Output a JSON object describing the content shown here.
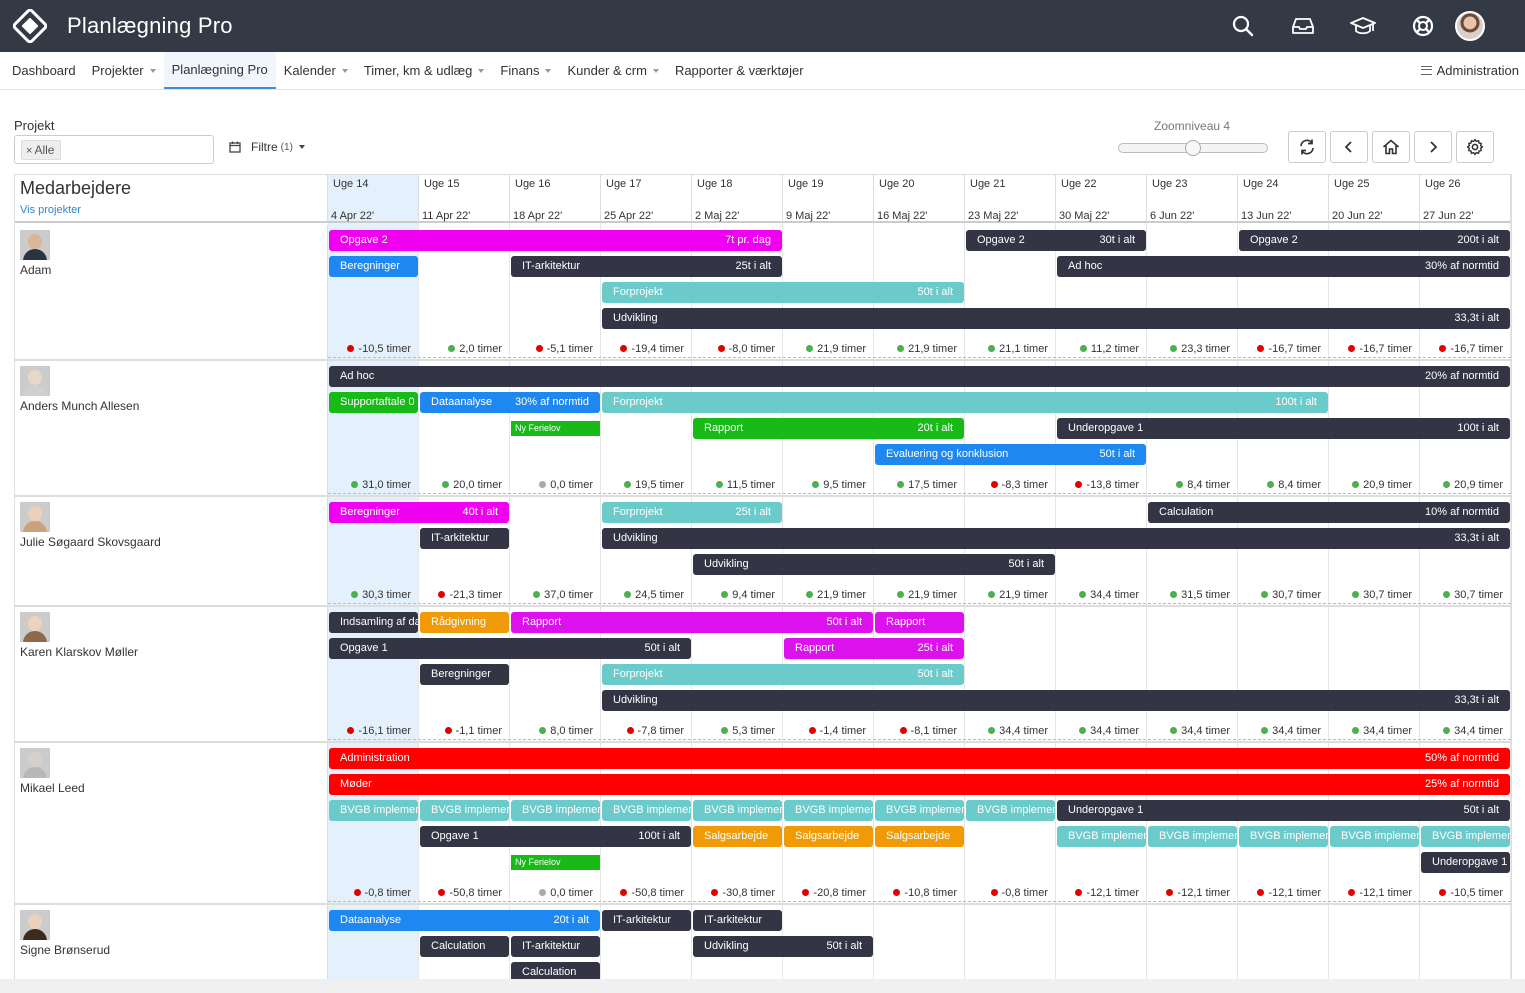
{
  "app": {
    "title": "Planlægning Pro"
  },
  "top_icons": [
    "search-icon",
    "inbox-icon",
    "graduation-cap-icon",
    "lifebuoy-icon"
  ],
  "nav": {
    "items": [
      {
        "label": "Dashboard",
        "caret": false
      },
      {
        "label": "Projekter",
        "caret": true
      },
      {
        "label": "Planlægning Pro",
        "caret": false,
        "active": true
      },
      {
        "label": "Kalender",
        "caret": true
      },
      {
        "label": "Timer, km & udlæg",
        "caret": true
      },
      {
        "label": "Finans",
        "caret": true
      },
      {
        "label": "Kunder & crm",
        "caret": true
      },
      {
        "label": "Rapporter & værktøjer",
        "caret": false
      }
    ],
    "admin_label": "Administration"
  },
  "controls": {
    "project_label": "Projekt",
    "project_tag": "Alle",
    "filter_label": "Filtre",
    "filter_count": "(1)",
    "zoom_label": "Zoomniveau 4",
    "zoom_level": 0.5
  },
  "grid": {
    "employees_heading": "Medarbejdere",
    "show_projects_link": "Vis projekter",
    "weeks": [
      {
        "week": "Uge 14",
        "date": "4 Apr 22'",
        "current": true
      },
      {
        "week": "Uge 15",
        "date": "11 Apr 22'"
      },
      {
        "week": "Uge 16",
        "date": "18 Apr 22'"
      },
      {
        "week": "Uge 17",
        "date": "25 Apr 22'"
      },
      {
        "week": "Uge 18",
        "date": "2 Maj 22'"
      },
      {
        "week": "Uge 19",
        "date": "9 Maj 22'"
      },
      {
        "week": "Uge 20",
        "date": "16 Maj 22'"
      },
      {
        "week": "Uge 21",
        "date": "23 Maj 22'"
      },
      {
        "week": "Uge 22",
        "date": "30 Maj 22'"
      },
      {
        "week": "Uge 23",
        "date": "6 Jun 22'"
      },
      {
        "week": "Uge 24",
        "date": "13 Jun 22'"
      },
      {
        "week": "Uge 25",
        "date": "20 Jun 22'"
      },
      {
        "week": "Uge 26",
        "date": "27 Jun 22'"
      }
    ]
  },
  "colors": {
    "dark": "#333545",
    "magenta": "#f000f0",
    "purple": "#dd10ee",
    "blue": "#1e88f0",
    "teal": "#6bcbcb",
    "green": "#18ba18",
    "orange": "#f09a08",
    "red": "#ff0000",
    "dot_red": "#e00000",
    "dot_green": "#4caf50",
    "dot_grey": "#aaaaaa"
  },
  "employees": [
    {
      "name": "Adam",
      "face": "#d9b59a",
      "body": "#2a3340",
      "bars": [
        {
          "label": "Opgave 2",
          "right": "7t pr. dag",
          "start": 0,
          "end": 5,
          "lane": 0,
          "color": "magenta"
        },
        {
          "label": "Opgave 2",
          "right": "30t i alt",
          "start": 7,
          "end": 9,
          "lane": 0,
          "color": "dark"
        },
        {
          "label": "Opgave 2",
          "right": "200t i alt",
          "start": 10,
          "end": 13,
          "lane": 0,
          "color": "dark"
        },
        {
          "label": "Beregninger",
          "right": "",
          "start": 0,
          "end": 1,
          "lane": 1,
          "color": "blue"
        },
        {
          "label": "IT-arkitektur",
          "right": "25t i alt",
          "start": 2,
          "end": 5,
          "lane": 1,
          "color": "dark"
        },
        {
          "label": "Ad hoc",
          "right": "30% af normtid",
          "start": 8,
          "end": 13,
          "lane": 1,
          "color": "dark"
        },
        {
          "label": "Forprojekt",
          "right": "50t i alt",
          "start": 3,
          "end": 7,
          "lane": 2,
          "color": "teal"
        },
        {
          "label": "Udvikling",
          "right": "33,3t i alt",
          "start": 3,
          "end": 13,
          "lane": 3,
          "color": "dark"
        }
      ],
      "hours": [
        {
          "t": "-10,5 timer",
          "s": "red"
        },
        {
          "t": "2,0 timer",
          "s": "green"
        },
        {
          "t": "-5,1 timer",
          "s": "red"
        },
        {
          "t": "-19,4 timer",
          "s": "red"
        },
        {
          "t": "-8,0 timer",
          "s": "red"
        },
        {
          "t": "21,9 timer",
          "s": "green"
        },
        {
          "t": "21,9 timer",
          "s": "green"
        },
        {
          "t": "21,1 timer",
          "s": "green"
        },
        {
          "t": "11,2 timer",
          "s": "green"
        },
        {
          "t": "23,3 timer",
          "s": "green"
        },
        {
          "t": "-16,7 timer",
          "s": "red"
        },
        {
          "t": "-16,7 timer",
          "s": "red"
        },
        {
          "t": "-16,7 timer",
          "s": "red"
        }
      ]
    },
    {
      "name": "Anders Munch Allesen",
      "face": "#e8d8c8",
      "body": "#d0d0d0",
      "bars": [
        {
          "label": "Ad hoc",
          "right": "20% af normtid",
          "start": 0,
          "end": 13,
          "lane": 0,
          "color": "dark"
        },
        {
          "label": "Supportaftale 0",
          "right": "",
          "start": 0,
          "end": 1,
          "lane": 1,
          "color": "green"
        },
        {
          "label": "Dataanalyse",
          "right": "30% af normtid",
          "start": 1,
          "end": 3,
          "lane": 1,
          "color": "blue"
        },
        {
          "label": "Forprojekt",
          "right": "100t i alt",
          "start": 3,
          "end": 11,
          "lane": 1,
          "color": "teal"
        },
        {
          "label": "Ny Ferielov",
          "right": "",
          "start": 2,
          "end": 3,
          "lane": 2,
          "color": "green",
          "small": true
        },
        {
          "label": "Rapport",
          "right": "20t i alt",
          "start": 4,
          "end": 7,
          "lane": 2,
          "color": "green"
        },
        {
          "label": "Underopgave 1",
          "right": "100t i alt",
          "start": 8,
          "end": 13,
          "lane": 2,
          "color": "dark"
        },
        {
          "label": "Evaluering og konklusion",
          "right": "50t i alt",
          "start": 6,
          "end": 9,
          "lane": 3,
          "color": "blue"
        }
      ],
      "hours": [
        {
          "t": "31,0 timer",
          "s": "green"
        },
        {
          "t": "20,0 timer",
          "s": "green"
        },
        {
          "t": "0,0 timer",
          "s": "grey"
        },
        {
          "t": "19,5 timer",
          "s": "green"
        },
        {
          "t": "11,5 timer",
          "s": "green"
        },
        {
          "t": "9,5 timer",
          "s": "green"
        },
        {
          "t": "17,5 timer",
          "s": "green"
        },
        {
          "t": "-8,3 timer",
          "s": "red"
        },
        {
          "t": "-13,8 timer",
          "s": "red"
        },
        {
          "t": "8,4 timer",
          "s": "green"
        },
        {
          "t": "8,4 timer",
          "s": "green"
        },
        {
          "t": "20,9 timer",
          "s": "green"
        },
        {
          "t": "20,9 timer",
          "s": "green"
        }
      ]
    },
    {
      "name": "Julie Søgaard Skovsgaard",
      "face": "#edd0b8",
      "body": "#c9a27a",
      "bars": [
        {
          "label": "Beregninger",
          "right": "40t i alt",
          "start": 0,
          "end": 2,
          "lane": 0,
          "color": "magenta"
        },
        {
          "label": "Forprojekt",
          "right": "25t i alt",
          "start": 3,
          "end": 5,
          "lane": 0,
          "color": "teal"
        },
        {
          "label": "Calculation",
          "right": "10% af normtid",
          "start": 9,
          "end": 13,
          "lane": 0,
          "color": "dark"
        },
        {
          "label": "IT-arkitektur",
          "right": "",
          "start": 1,
          "end": 2,
          "lane": 1,
          "color": "dark"
        },
        {
          "label": "Udvikling",
          "right": "33,3t i alt",
          "start": 3,
          "end": 13,
          "lane": 1,
          "color": "dark"
        },
        {
          "label": "Udvikling",
          "right": "50t i alt",
          "start": 4,
          "end": 8,
          "lane": 2,
          "color": "dark"
        }
      ],
      "hours": [
        {
          "t": "30,3 timer",
          "s": "green"
        },
        {
          "t": "-21,3 timer",
          "s": "red"
        },
        {
          "t": "37,0 timer",
          "s": "green"
        },
        {
          "t": "24,5 timer",
          "s": "green"
        },
        {
          "t": "9,4 timer",
          "s": "green"
        },
        {
          "t": "21,9 timer",
          "s": "green"
        },
        {
          "t": "21,9 timer",
          "s": "green"
        },
        {
          "t": "21,9 timer",
          "s": "green"
        },
        {
          "t": "34,4 timer",
          "s": "green"
        },
        {
          "t": "31,5 timer",
          "s": "green"
        },
        {
          "t": "30,7 timer",
          "s": "green"
        },
        {
          "t": "30,7 timer",
          "s": "green"
        },
        {
          "t": "30,7 timer",
          "s": "green"
        }
      ]
    },
    {
      "name": "Karen Klarskov Møller",
      "face": "#eed2bc",
      "body": "#8a6a4a",
      "bars": [
        {
          "label": "Indsamling af da",
          "right": "",
          "start": 0,
          "end": 1,
          "lane": 0,
          "color": "dark"
        },
        {
          "label": "Rådgivning",
          "right": "",
          "start": 1,
          "end": 2,
          "lane": 0,
          "color": "orange"
        },
        {
          "label": "Rapport",
          "right": "50t i alt",
          "start": 2,
          "end": 6,
          "lane": 0,
          "color": "purple"
        },
        {
          "label": "Rapport",
          "right": "",
          "start": 6,
          "end": 7,
          "lane": 0,
          "color": "purple"
        },
        {
          "label": "Opgave 1",
          "right": "50t i alt",
          "start": 0,
          "end": 4,
          "lane": 1,
          "color": "dark"
        },
        {
          "label": "Rapport",
          "right": "25t i alt",
          "start": 5,
          "end": 7,
          "lane": 1,
          "color": "purple"
        },
        {
          "label": "Beregninger",
          "right": "",
          "start": 1,
          "end": 2,
          "lane": 2,
          "color": "dark"
        },
        {
          "label": "Forprojekt",
          "right": "50t i alt",
          "start": 3,
          "end": 7,
          "lane": 2,
          "color": "teal"
        },
        {
          "label": "Udvikling",
          "right": "33,3t i alt",
          "start": 3,
          "end": 13,
          "lane": 3,
          "color": "dark"
        }
      ],
      "hours": [
        {
          "t": "-16,1 timer",
          "s": "red"
        },
        {
          "t": "-1,1 timer",
          "s": "red"
        },
        {
          "t": "8,0 timer",
          "s": "green"
        },
        {
          "t": "-7,8 timer",
          "s": "red"
        },
        {
          "t": "5,3 timer",
          "s": "green"
        },
        {
          "t": "-1,4 timer",
          "s": "red"
        },
        {
          "t": "-8,1 timer",
          "s": "red"
        },
        {
          "t": "34,4 timer",
          "s": "green"
        },
        {
          "t": "34,4 timer",
          "s": "green"
        },
        {
          "t": "34,4 timer",
          "s": "green"
        },
        {
          "t": "34,4 timer",
          "s": "green"
        },
        {
          "t": "34,4 timer",
          "s": "green"
        },
        {
          "t": "34,4 timer",
          "s": "green"
        }
      ]
    },
    {
      "name": "Mikael Leed",
      "face": "#d8d0c8",
      "body": "#b8b8b8",
      "bars": [
        {
          "label": "Administration",
          "right": "50% af normtid",
          "start": 0,
          "end": 13,
          "lane": 0,
          "color": "red"
        },
        {
          "label": "Møder",
          "right": "25% af normtid",
          "start": 0,
          "end": 13,
          "lane": 1,
          "color": "red"
        },
        {
          "label": "BVGB implemer",
          "right": "",
          "start": 0,
          "end": 1,
          "lane": 2,
          "color": "teal"
        },
        {
          "label": "BVGB implemer",
          "right": "",
          "start": 1,
          "end": 2,
          "lane": 2,
          "color": "teal"
        },
        {
          "label": "BVGB implemer",
          "right": "",
          "start": 2,
          "end": 3,
          "lane": 2,
          "color": "teal"
        },
        {
          "label": "BVGB implemer",
          "right": "",
          "start": 3,
          "end": 4,
          "lane": 2,
          "color": "teal"
        },
        {
          "label": "BVGB implemer",
          "right": "",
          "start": 4,
          "end": 5,
          "lane": 2,
          "color": "teal"
        },
        {
          "label": "BVGB implemer",
          "right": "",
          "start": 5,
          "end": 6,
          "lane": 2,
          "color": "teal"
        },
        {
          "label": "BVGB implemer",
          "right": "",
          "start": 6,
          "end": 7,
          "lane": 2,
          "color": "teal"
        },
        {
          "label": "BVGB implemer",
          "right": "",
          "start": 7,
          "end": 8,
          "lane": 2,
          "color": "teal"
        },
        {
          "label": "Underopgave 1",
          "right": "50t i alt",
          "start": 8,
          "end": 13,
          "lane": 2,
          "color": "dark"
        },
        {
          "label": "Opgave 1",
          "right": "100t i alt",
          "start": 1,
          "end": 4,
          "lane": 3,
          "color": "dark"
        },
        {
          "label": "Salgsarbejde",
          "right": "",
          "start": 4,
          "end": 5,
          "lane": 3,
          "color": "orange"
        },
        {
          "label": "Salgsarbejde",
          "right": "",
          "start": 5,
          "end": 6,
          "lane": 3,
          "color": "orange"
        },
        {
          "label": "Salgsarbejde",
          "right": "",
          "start": 6,
          "end": 7,
          "lane": 3,
          "color": "orange"
        },
        {
          "label": "BVGB implemer",
          "right": "",
          "start": 8,
          "end": 9,
          "lane": 3,
          "color": "teal"
        },
        {
          "label": "BVGB implemer",
          "right": "",
          "start": 9,
          "end": 10,
          "lane": 3,
          "color": "teal"
        },
        {
          "label": "BVGB implemer",
          "right": "",
          "start": 10,
          "end": 11,
          "lane": 3,
          "color": "teal"
        },
        {
          "label": "BVGB implemer",
          "right": "",
          "start": 11,
          "end": 12,
          "lane": 3,
          "color": "teal"
        },
        {
          "label": "BVGB implemer",
          "right": "",
          "start": 12,
          "end": 13,
          "lane": 3,
          "color": "teal"
        },
        {
          "label": "Ny Ferielov",
          "right": "",
          "start": 2,
          "end": 3,
          "lane": 4,
          "color": "green",
          "small": true
        },
        {
          "label": "Underopgave 1",
          "right": "",
          "start": 12,
          "end": 13,
          "lane": 4,
          "color": "dark"
        }
      ],
      "hours": [
        {
          "t": "-0,8 timer",
          "s": "red"
        },
        {
          "t": "-50,8 timer",
          "s": "red"
        },
        {
          "t": "0,0 timer",
          "s": "grey"
        },
        {
          "t": "-50,8 timer",
          "s": "red"
        },
        {
          "t": "-30,8 timer",
          "s": "red"
        },
        {
          "t": "-20,8 timer",
          "s": "red"
        },
        {
          "t": "-10,8 timer",
          "s": "red"
        },
        {
          "t": "-0,8 timer",
          "s": "red"
        },
        {
          "t": "-12,1 timer",
          "s": "red"
        },
        {
          "t": "-12,1 timer",
          "s": "red"
        },
        {
          "t": "-12,1 timer",
          "s": "red"
        },
        {
          "t": "-12,1 timer",
          "s": "red"
        },
        {
          "t": "-10,5 timer",
          "s": "red"
        }
      ]
    },
    {
      "name": "Signe Brønserud",
      "face": "#ecd2bc",
      "body": "#3a2a20",
      "bars": [
        {
          "label": "Dataanalyse",
          "right": "20t i alt",
          "start": 0,
          "end": 3,
          "lane": 0,
          "color": "blue"
        },
        {
          "label": "IT-arkitektur",
          "right": "",
          "start": 3,
          "end": 4,
          "lane": 0,
          "color": "dark"
        },
        {
          "label": "IT-arkitektur",
          "right": "",
          "start": 4,
          "end": 5,
          "lane": 0,
          "color": "dark"
        },
        {
          "label": "Calculation",
          "right": "",
          "start": 1,
          "end": 2,
          "lane": 1,
          "color": "dark"
        },
        {
          "label": "IT-arkitektur",
          "right": "",
          "start": 2,
          "end": 3,
          "lane": 1,
          "color": "dark"
        },
        {
          "label": "Udvikling",
          "right": "50t i alt",
          "start": 4,
          "end": 6,
          "lane": 1,
          "color": "dark"
        },
        {
          "label": "Calculation",
          "right": "",
          "start": 2,
          "end": 3,
          "lane": 2,
          "color": "dark"
        }
      ],
      "hours": []
    }
  ]
}
